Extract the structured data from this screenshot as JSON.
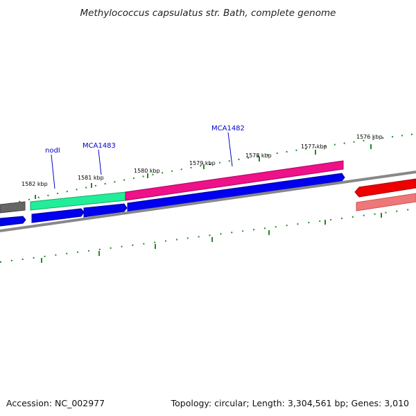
{
  "title": "Methylococcus capsulatus str. Bath, complete genome",
  "footer": {
    "accession": "Accession: NC_002977",
    "summary": "Topology: circular; Length: 3,304,561 bp; Genes: 3,010"
  },
  "ticks": [
    "1582 kbp",
    "1581 kbp",
    "1580 kbp",
    "1579 kbp",
    "1578 kbp",
    "1577 kbp",
    "1576 kbp"
  ],
  "gene_labels": [
    {
      "text": "nodI",
      "color": "#0000cc"
    },
    {
      "text": "MCA1483",
      "color": "#0000cc"
    },
    {
      "text": "MCA1482",
      "color": "#0000cc"
    }
  ],
  "colors": {
    "cds_forward": "#0000ee",
    "gene_green": "#22ee99",
    "gene_pink": "#ee1188",
    "gene_red": "#ee0000",
    "gene_light_red": "#ee7777",
    "gene_gray": "#666666",
    "backbone": "#888888",
    "tick": "#228822"
  }
}
